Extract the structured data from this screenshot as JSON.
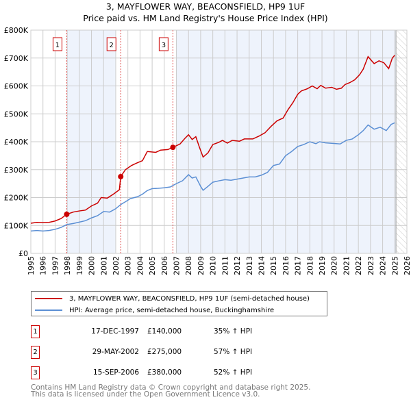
{
  "title": "3, MAYFLOWER WAY, BEACONSFIELD, HP9 1UF",
  "subtitle": "Price paid vs. HM Land Registry's House Price Index (HPI)",
  "legend": {
    "property": "3, MAYFLOWER WAY, BEACONSFIELD, HP9 1UF (semi-detached house)",
    "hpi": "HPI: Average price, semi-detached house, Buckinghamshire"
  },
  "sales": [
    {
      "num": "1",
      "date": "17-DEC-1997",
      "price": "£140,000",
      "hpi": "35% ↑ HPI",
      "year": 1997.96,
      "value": 140
    },
    {
      "num": "2",
      "date": "29-MAY-2002",
      "price": "£275,000",
      "hpi": "57% ↑ HPI",
      "year": 2002.41,
      "value": 275
    },
    {
      "num": "3",
      "date": "15-SEP-2006",
      "price": "£380,000",
      "hpi": "52% ↑ HPI",
      "year": 2006.71,
      "value": 380
    }
  ],
  "footer": {
    "line1": "Contains HM Land Registry data © Crown copyright and database right 2025.",
    "line2": "This data is licensed under the Open Government Licence v3.0."
  },
  "colors": {
    "property": "#cc0000",
    "hpi": "#5b8fd4",
    "shade": "#eef3fc"
  },
  "chart_data": {
    "type": "line",
    "xlim": [
      1995,
      2026
    ],
    "ylim": [
      0,
      800000
    ],
    "yticks": [
      "£0",
      "£100K",
      "£200K",
      "£300K",
      "£400K",
      "£500K",
      "£600K",
      "£700K",
      "£800K"
    ],
    "xticks": [
      "1995",
      "1996",
      "1997",
      "1998",
      "1999",
      "2000",
      "2001",
      "2002",
      "2003",
      "2004",
      "2005",
      "2006",
      "2007",
      "2008",
      "2009",
      "2010",
      "2011",
      "2012",
      "2013",
      "2014",
      "2015",
      "2016",
      "2017",
      "2018",
      "2019",
      "2020",
      "2021",
      "2022",
      "2023",
      "2024",
      "2025",
      "2026"
    ],
    "grid": true,
    "units": "thousands GBP",
    "series": [
      {
        "name": "property",
        "points": [
          [
            1995,
            108
          ],
          [
            1995.5,
            111
          ],
          [
            1996,
            110
          ],
          [
            1996.5,
            111
          ],
          [
            1997,
            116
          ],
          [
            1997.5,
            125
          ],
          [
            1997.96,
            140
          ],
          [
            1998.5,
            148
          ],
          [
            1999,
            152
          ],
          [
            1999.5,
            155
          ],
          [
            2000,
            170
          ],
          [
            2000.5,
            180
          ],
          [
            2000.8,
            200
          ],
          [
            2001.3,
            198
          ],
          [
            2001.8,
            212
          ],
          [
            2002.3,
            228
          ],
          [
            2002.41,
            275
          ],
          [
            2002.8,
            300
          ],
          [
            2003.3,
            315
          ],
          [
            2003.8,
            325
          ],
          [
            2004.2,
            332
          ],
          [
            2004.6,
            365
          ],
          [
            2005.3,
            362
          ],
          [
            2005.7,
            370
          ],
          [
            2006.3,
            372
          ],
          [
            2006.71,
            380
          ],
          [
            2007.3,
            392
          ],
          [
            2007.7,
            412
          ],
          [
            2008,
            425
          ],
          [
            2008.3,
            408
          ],
          [
            2008.6,
            418
          ],
          [
            2008.9,
            380
          ],
          [
            2009.2,
            345
          ],
          [
            2009.6,
            360
          ],
          [
            2010,
            390
          ],
          [
            2010.5,
            398
          ],
          [
            2010.8,
            405
          ],
          [
            2011.2,
            395
          ],
          [
            2011.6,
            405
          ],
          [
            2012.2,
            402
          ],
          [
            2012.6,
            410
          ],
          [
            2013.3,
            410
          ],
          [
            2013.8,
            420
          ],
          [
            2014.3,
            432
          ],
          [
            2014.8,
            455
          ],
          [
            2015.3,
            475
          ],
          [
            2015.8,
            485
          ],
          [
            2016.2,
            515
          ],
          [
            2016.6,
            540
          ],
          [
            2017,
            570
          ],
          [
            2017.3,
            582
          ],
          [
            2017.8,
            590
          ],
          [
            2018.2,
            600
          ],
          [
            2018.6,
            590
          ],
          [
            2018.9,
            602
          ],
          [
            2019.3,
            592
          ],
          [
            2019.8,
            595
          ],
          [
            2020.2,
            588
          ],
          [
            2020.6,
            592
          ],
          [
            2020.9,
            605
          ],
          [
            2021.3,
            612
          ],
          [
            2021.7,
            622
          ],
          [
            2022.1,
            640
          ],
          [
            2022.4,
            660
          ],
          [
            2022.8,
            705
          ],
          [
            2023.3,
            680
          ],
          [
            2023.7,
            690
          ],
          [
            2024.1,
            683
          ],
          [
            2024.5,
            662
          ],
          [
            2024.8,
            700
          ],
          [
            2025,
            710
          ]
        ]
      },
      {
        "name": "hpi",
        "points": [
          [
            1995,
            80
          ],
          [
            1995.5,
            82
          ],
          [
            1996,
            80
          ],
          [
            1996.5,
            82
          ],
          [
            1997,
            86
          ],
          [
            1997.5,
            93
          ],
          [
            1997.96,
            103
          ],
          [
            1998.5,
            107
          ],
          [
            1999,
            112
          ],
          [
            1999.5,
            117
          ],
          [
            2000,
            127
          ],
          [
            2000.5,
            135
          ],
          [
            2001,
            150
          ],
          [
            2001.5,
            148
          ],
          [
            2002,
            160
          ],
          [
            2002.41,
            175
          ],
          [
            2002.8,
            185
          ],
          [
            2003.2,
            196
          ],
          [
            2003.8,
            203
          ],
          [
            2004.2,
            212
          ],
          [
            2004.6,
            225
          ],
          [
            2005,
            232
          ],
          [
            2005.5,
            233
          ],
          [
            2006,
            235
          ],
          [
            2006.5,
            238
          ],
          [
            2007,
            250
          ],
          [
            2007.5,
            260
          ],
          [
            2008,
            282
          ],
          [
            2008.3,
            270
          ],
          [
            2008.6,
            274
          ],
          [
            2009,
            240
          ],
          [
            2009.2,
            226
          ],
          [
            2009.6,
            240
          ],
          [
            2010,
            255
          ],
          [
            2010.5,
            260
          ],
          [
            2011,
            264
          ],
          [
            2011.5,
            262
          ],
          [
            2012,
            266
          ],
          [
            2012.5,
            270
          ],
          [
            2013,
            274
          ],
          [
            2013.5,
            274
          ],
          [
            2014,
            280
          ],
          [
            2014.5,
            290
          ],
          [
            2015,
            315
          ],
          [
            2015.5,
            320
          ],
          [
            2016,
            350
          ],
          [
            2016.5,
            365
          ],
          [
            2017,
            383
          ],
          [
            2017.5,
            390
          ],
          [
            2018,
            400
          ],
          [
            2018.5,
            393
          ],
          [
            2018.8,
            400
          ],
          [
            2019.3,
            396
          ],
          [
            2020,
            394
          ],
          [
            2020.5,
            392
          ],
          [
            2021,
            405
          ],
          [
            2021.5,
            410
          ],
          [
            2022,
            425
          ],
          [
            2022.4,
            440
          ],
          [
            2022.8,
            460
          ],
          [
            2023.3,
            445
          ],
          [
            2023.8,
            452
          ],
          [
            2024.3,
            440
          ],
          [
            2024.7,
            462
          ],
          [
            2025,
            468
          ]
        ]
      }
    ]
  }
}
